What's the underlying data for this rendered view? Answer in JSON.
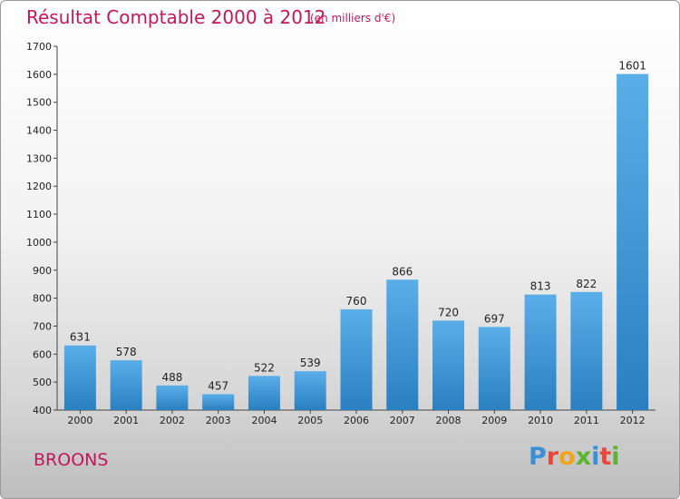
{
  "header": {
    "title": "Résultat Comptable 2000 à 2012",
    "subtitle": "(en milliers d'€)"
  },
  "footer": {
    "city": "BROONS",
    "brand_letters": [
      "P",
      "r",
      "o",
      "x",
      "i",
      "t",
      "i"
    ],
    "brand_colors": [
      "#3a8fd8",
      "#e8473c",
      "#f2a31c",
      "#5bb530",
      "#3a8fd8",
      "#e8473c",
      "#5bb530"
    ]
  },
  "chart_data": {
    "type": "bar",
    "categories": [
      "2000",
      "2001",
      "2002",
      "2003",
      "2004",
      "2005",
      "2006",
      "2007",
      "2008",
      "2009",
      "2010",
      "2011",
      "2012"
    ],
    "values": [
      631,
      578,
      488,
      457,
      522,
      539,
      760,
      866,
      720,
      697,
      813,
      822,
      1601
    ],
    "ylim": [
      400,
      1700
    ],
    "yticks": [
      400,
      500,
      600,
      700,
      800,
      900,
      1000,
      1100,
      1200,
      1300,
      1400,
      1500,
      1600,
      1700
    ],
    "grid": false,
    "bar_color_top": "#5aaee8",
    "bar_color_bottom": "#2a7fc0",
    "title": "Résultat Comptable 2000 à 2012",
    "subtitle": "(en milliers d'€)"
  }
}
